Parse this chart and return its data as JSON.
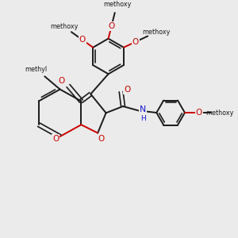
{
  "background_color": "#ebebeb",
  "bond_color": "#1a1a1a",
  "oxygen_color": "#cc0000",
  "nitrogen_color": "#1414cc",
  "fig_width": 3.0,
  "fig_height": 3.0,
  "dpi": 100,
  "methoxy_labels": [
    "methoxy",
    "methoxy",
    "methoxy"
  ],
  "atom_O": "O",
  "atom_N": "N",
  "atom_H": "H",
  "methyl_label": "methyl"
}
